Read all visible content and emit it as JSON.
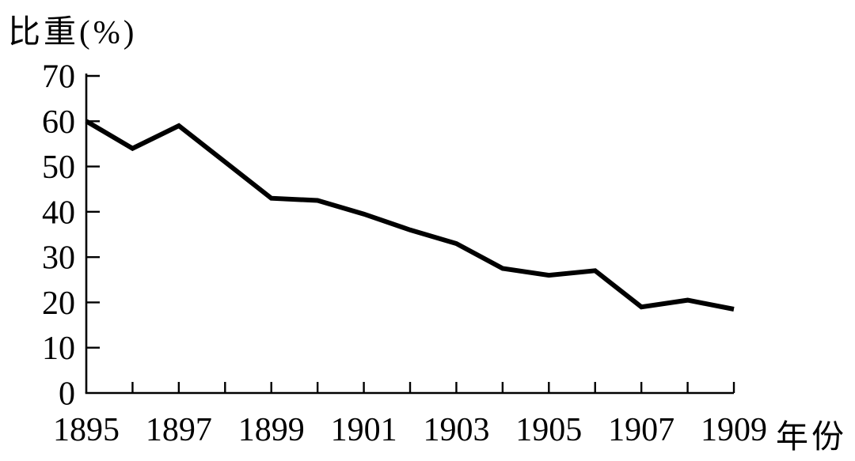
{
  "page": {
    "background": "#ffffff",
    "text_color": "#000000"
  },
  "chart_data": {
    "type": "line",
    "title": "",
    "ylabel": "比重(%)",
    "xlabel": "年份",
    "x": [
      1895,
      1896,
      1897,
      1898,
      1899,
      1900,
      1901,
      1902,
      1903,
      1904,
      1905,
      1906,
      1907,
      1908,
      1909
    ],
    "values": [
      60,
      54,
      59,
      51,
      43,
      42.5,
      39.5,
      36,
      33,
      27.5,
      26,
      27,
      19,
      20.5,
      18.5
    ],
    "ylim": [
      0,
      70
    ],
    "y_ticks": [
      0,
      10,
      20,
      30,
      40,
      50,
      60,
      70
    ],
    "x_tick_years": [
      1895,
      1896,
      1897,
      1898,
      1899,
      1900,
      1901,
      1902,
      1903,
      1904,
      1905,
      1906,
      1907,
      1908,
      1909
    ],
    "x_labeled_years": [
      1895,
      1897,
      1899,
      1901,
      1903,
      1905,
      1907,
      1909
    ],
    "grid": false,
    "legend": "none",
    "line_color": "#000000",
    "axis_color": "#000000"
  }
}
